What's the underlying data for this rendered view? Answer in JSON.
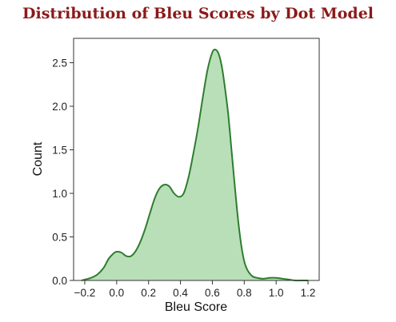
{
  "chart_data": {
    "type": "area",
    "title": "Distribution of Bleu Scores by Dot Model",
    "xlabel": "Bleu Score",
    "ylabel": "Count",
    "xlim": [
      -0.27,
      1.27
    ],
    "ylim": [
      0,
      2.78
    ],
    "x_ticks": [
      -0.2,
      0.0,
      0.2,
      0.4,
      0.6,
      0.8,
      1.0,
      1.2
    ],
    "x_tick_labels": [
      "−0.2",
      "0.0",
      "0.2",
      "0.4",
      "0.6",
      "0.8",
      "1.0",
      "1.2"
    ],
    "y_ticks": [
      0.0,
      0.5,
      1.0,
      1.5,
      2.0,
      2.5
    ],
    "y_tick_labels": [
      "0.0",
      "0.5",
      "1.0",
      "1.5",
      "2.0",
      "2.5"
    ],
    "grid": false,
    "line_color": "#2e7d2e",
    "fill_color": "#b9dfb9",
    "series": [
      {
        "x": [
          -0.22,
          -0.2,
          -0.16,
          -0.12,
          -0.08,
          -0.05,
          -0.02,
          0.0,
          0.03,
          0.06,
          0.09,
          0.12,
          0.15,
          0.18,
          0.21,
          0.24,
          0.27,
          0.3,
          0.33,
          0.36,
          0.39,
          0.42,
          0.45,
          0.48,
          0.51,
          0.54,
          0.57,
          0.6,
          0.62,
          0.64,
          0.66,
          0.68,
          0.7,
          0.72,
          0.74,
          0.76,
          0.78,
          0.8,
          0.82,
          0.85,
          0.88,
          0.92,
          0.96,
          1.0,
          1.04,
          1.08,
          1.12,
          1.16,
          1.2
        ],
        "y": [
          0.0,
          0.01,
          0.03,
          0.07,
          0.15,
          0.25,
          0.31,
          0.33,
          0.32,
          0.28,
          0.28,
          0.34,
          0.45,
          0.6,
          0.78,
          0.95,
          1.06,
          1.1,
          1.08,
          1.0,
          0.96,
          1.0,
          1.18,
          1.45,
          1.75,
          2.1,
          2.42,
          2.62,
          2.65,
          2.6,
          2.45,
          2.2,
          1.9,
          1.5,
          1.1,
          0.72,
          0.42,
          0.22,
          0.12,
          0.05,
          0.03,
          0.02,
          0.03,
          0.03,
          0.02,
          0.01,
          0.0,
          0.0,
          0.0
        ]
      }
    ]
  }
}
